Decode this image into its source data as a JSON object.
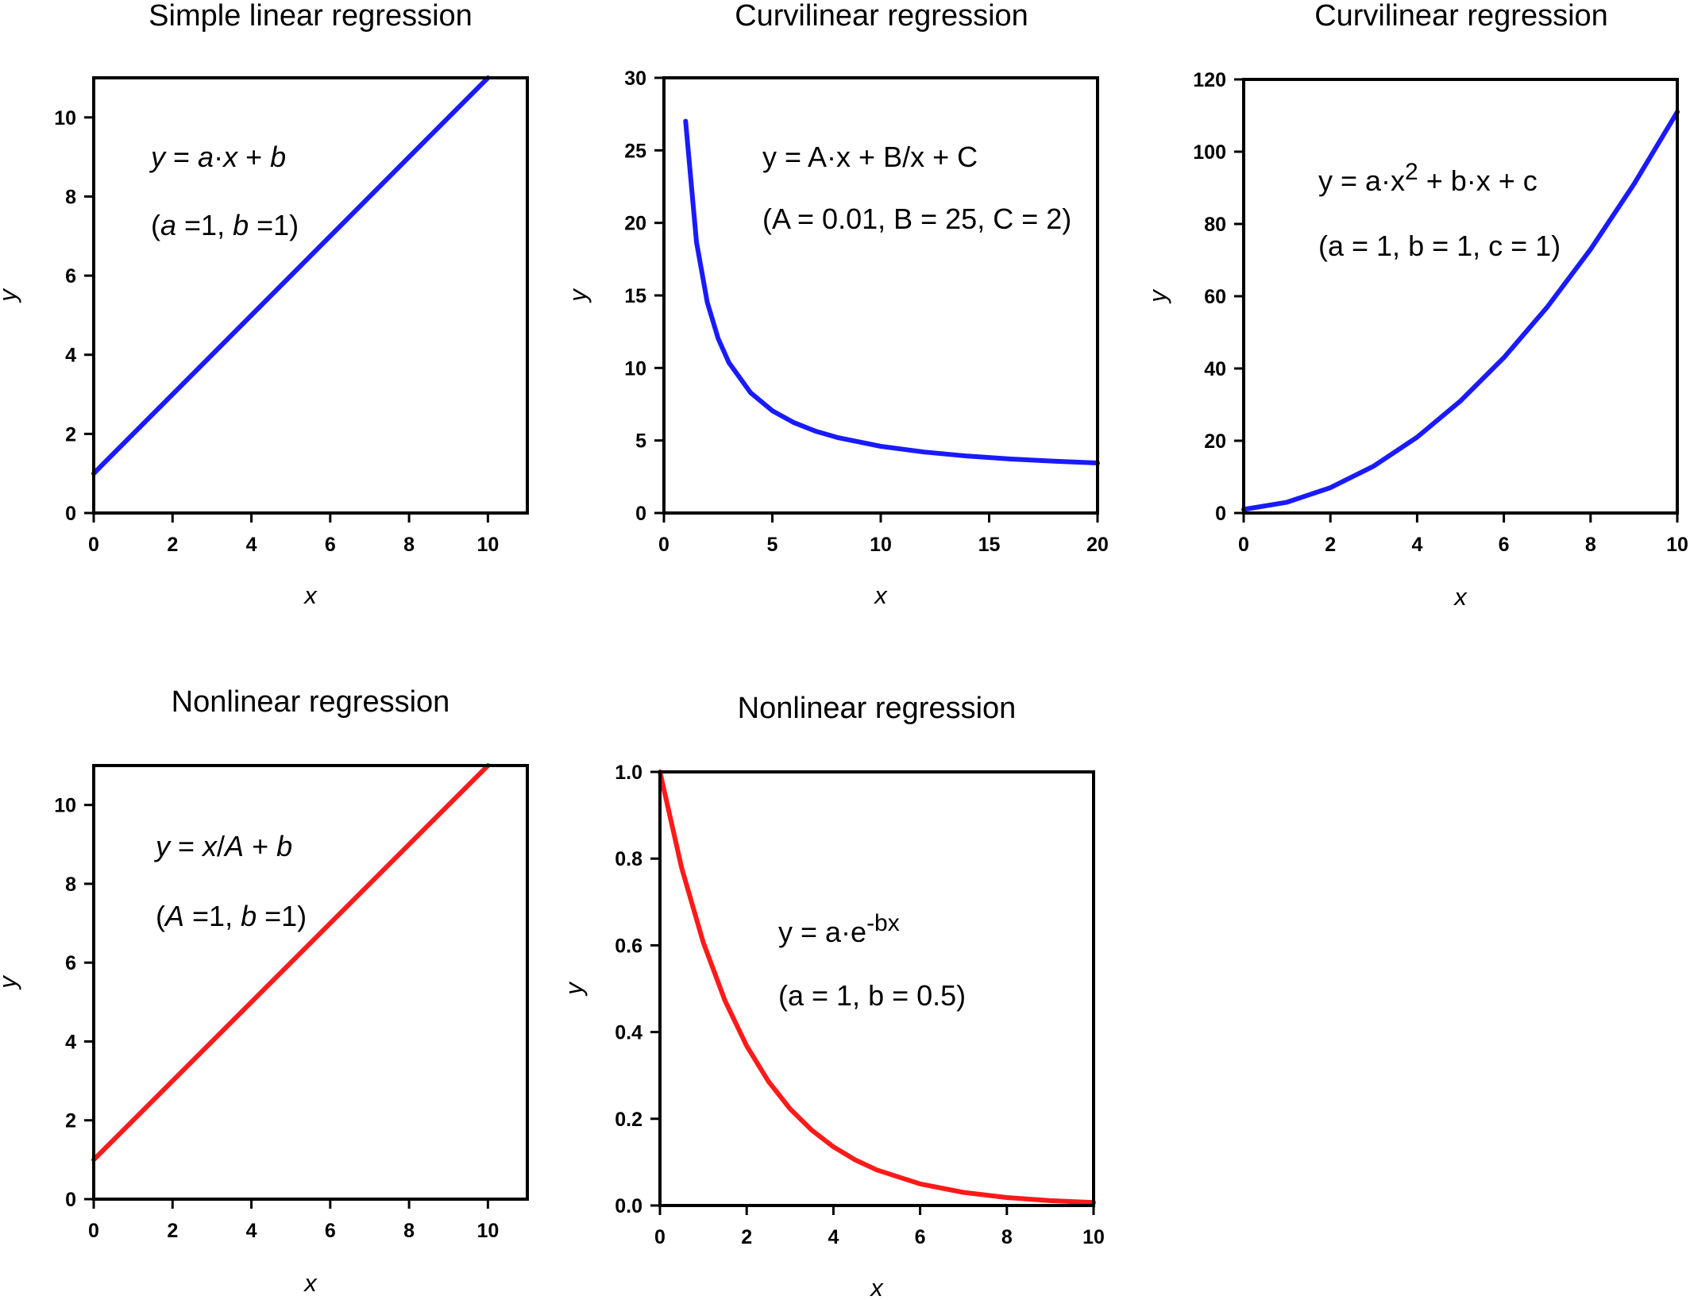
{
  "chart_data": [
    {
      "type": "line",
      "title": "Simple linear regression",
      "xlabel": "x",
      "ylabel": "y",
      "xlim": [
        0,
        11
      ],
      "ylim": [
        0,
        11
      ],
      "xticks": [
        0,
        2,
        4,
        6,
        8,
        10
      ],
      "yticks": [
        0,
        2,
        4,
        6,
        8,
        10
      ],
      "xtick_labels": [
        "0",
        "2",
        "4",
        "6",
        "8",
        "10"
      ],
      "ytick_labels": [
        "0",
        "2",
        "4",
        "6",
        "8",
        "10"
      ],
      "equation": [
        {
          "pre": "",
          "italic": "y",
          "post": " = "
        },
        {
          "pre": "",
          "italic": "a",
          "post": "·"
        },
        {
          "pre": "",
          "italic": "x",
          "post": " + "
        },
        {
          "pre": "",
          "italic": "b",
          "post": ""
        }
      ],
      "params": [
        {
          "pre": "(",
          "italic": "a",
          "post": " =1, "
        },
        {
          "pre": "",
          "italic": "b",
          "post": " =1)"
        }
      ],
      "color": "#1a1aff",
      "series": [
        {
          "name": "y = x + 1",
          "x": [
            0,
            10
          ],
          "y": [
            1,
            11
          ]
        }
      ]
    },
    {
      "type": "line",
      "title": "Curvilinear regression",
      "xlabel": "x",
      "ylabel": "y",
      "xlim": [
        0,
        20
      ],
      "ylim": [
        0,
        30
      ],
      "xticks": [
        0,
        5,
        10,
        15,
        20
      ],
      "yticks": [
        0,
        5,
        10,
        15,
        20,
        25,
        30
      ],
      "xtick_labels": [
        "0",
        "5",
        "10",
        "15",
        "20"
      ],
      "ytick_labels": [
        "0",
        "5",
        "10",
        "15",
        "20",
        "25",
        "30"
      ],
      "equation_text": "y = A·x + B/x + C",
      "params_text": "(A = 0.01, B = 25, C = 2)",
      "color": "#1a1aff",
      "series": [
        {
          "name": "y = 0.01x + 25/x + 2",
          "x": [
            1,
            1.5,
            2,
            2.5,
            3,
            4,
            5,
            6,
            7,
            8,
            10,
            12,
            14,
            16,
            18,
            20
          ],
          "y": [
            27.01,
            18.68,
            14.52,
            12.03,
            10.36,
            8.29,
            7.05,
            6.23,
            5.64,
            5.205,
            4.6,
            4.203,
            3.926,
            3.723,
            3.569,
            3.45
          ]
        }
      ]
    },
    {
      "type": "line",
      "title": "Curvilinear regression",
      "xlabel": "x",
      "ylabel": "y",
      "xlim": [
        0,
        10
      ],
      "ylim": [
        0,
        120
      ],
      "xticks": [
        0,
        2,
        4,
        6,
        8,
        10
      ],
      "yticks": [
        0,
        20,
        40,
        60,
        80,
        100,
        120
      ],
      "xtick_labels": [
        "0",
        "2",
        "4",
        "6",
        "8",
        "10"
      ],
      "ytick_labels": [
        "0",
        "20",
        "40",
        "60",
        "80",
        "100",
        "120"
      ],
      "equation_pre": "y = a·x",
      "equation_sup": "2",
      "equation_post": " + b·x + c",
      "params_text": "(a = 1, b = 1, c = 1)",
      "color": "#1a1aff",
      "series": [
        {
          "name": "y = x^2 + x + 1",
          "x": [
            0,
            1,
            2,
            3,
            4,
            5,
            6,
            7,
            8,
            9,
            10
          ],
          "y": [
            1,
            3,
            7,
            13,
            21,
            31,
            43,
            57,
            73,
            91,
            111
          ]
        }
      ]
    },
    {
      "type": "line",
      "title": "Nonlinear regression",
      "xlabel": "x",
      "ylabel": "y",
      "xlim": [
        0,
        11
      ],
      "ylim": [
        0,
        11
      ],
      "xticks": [
        0,
        2,
        4,
        6,
        8,
        10
      ],
      "yticks": [
        0,
        2,
        4,
        6,
        8,
        10
      ],
      "xtick_labels": [
        "0",
        "2",
        "4",
        "6",
        "8",
        "10"
      ],
      "ytick_labels": [
        "0",
        "2",
        "4",
        "6",
        "8",
        "10"
      ],
      "equation": [
        {
          "pre": "",
          "italic": "y",
          "post": " = "
        },
        {
          "pre": "",
          "italic": "x",
          "post": "/"
        },
        {
          "pre": "",
          "italic": "A",
          "post": " + "
        },
        {
          "pre": "",
          "italic": "b",
          "post": ""
        }
      ],
      "params": [
        {
          "pre": "(",
          "italic": "A",
          "post": " =1, "
        },
        {
          "pre": "",
          "italic": "b",
          "post": " =1)"
        }
      ],
      "color": "#ff1a1a",
      "series": [
        {
          "name": "y = x/1 + 1",
          "x": [
            0,
            10
          ],
          "y": [
            1,
            11
          ]
        }
      ]
    },
    {
      "type": "line",
      "title": "Nonlinear regression",
      "xlabel": "x",
      "ylabel": "y",
      "xlim": [
        0,
        10
      ],
      "ylim": [
        0,
        1.0
      ],
      "xticks": [
        0,
        2,
        4,
        6,
        8,
        10
      ],
      "yticks": [
        0,
        0.2,
        0.4,
        0.6,
        0.8,
        1.0
      ],
      "xtick_labels": [
        "0",
        "2",
        "4",
        "6",
        "8",
        "10"
      ],
      "ytick_labels": [
        "0.0",
        "0.2",
        "0.4",
        "0.6",
        "0.8",
        "1.0"
      ],
      "equation_pre": "y = a·e",
      "equation_sup": "-bx",
      "equation_post": "",
      "params_text": "(a = 1, b = 0.5)",
      "color": "#ff1a1a",
      "series": [
        {
          "name": "y = e^(-0.5x)",
          "x": [
            0,
            0.5,
            1,
            1.5,
            2,
            2.5,
            3,
            3.5,
            4,
            4.5,
            5,
            6,
            7,
            8,
            9,
            10
          ],
          "y": [
            1,
            0.7788,
            0.6065,
            0.4724,
            0.3679,
            0.2865,
            0.2231,
            0.1738,
            0.1353,
            0.1054,
            0.0821,
            0.0498,
            0.0302,
            0.0183,
            0.0111,
            0.0067
          ]
        }
      ]
    }
  ]
}
